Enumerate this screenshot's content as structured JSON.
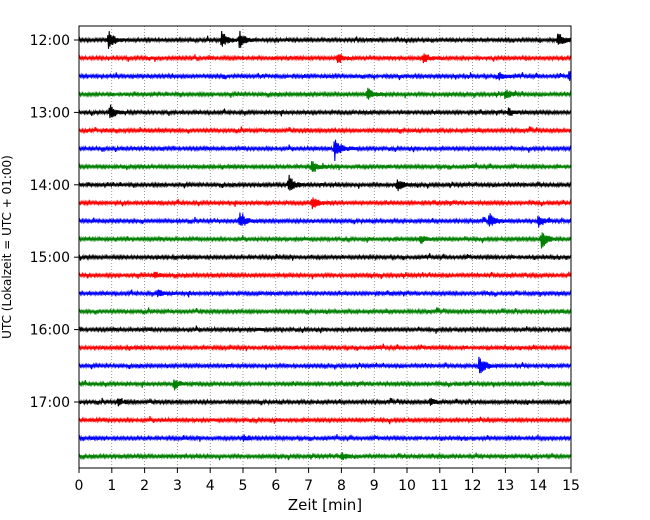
{
  "chart_data": {
    "type": "line",
    "title": "",
    "xlabel": "Zeit  [min]",
    "ylabel": "UTC (Lokalzeit = UTC + 01:00)",
    "xlim": [
      0,
      15
    ],
    "x_ticks": [
      "0",
      "1",
      "2",
      "3",
      "4",
      "5",
      "6",
      "7",
      "8",
      "9",
      "10",
      "11",
      "12",
      "13",
      "14",
      "15"
    ],
    "y_tick_labels": [
      "12:00",
      "13:00",
      "14:00",
      "15:00",
      "16:00",
      "17:00"
    ],
    "trace_interval_min": 15,
    "start_time": "12:00",
    "trace_count": 24,
    "colors": [
      "#000000",
      "#ff0000",
      "#0000ff",
      "#008000"
    ],
    "vertical_grid": "dotted",
    "events": [
      {
        "trace": 0,
        "t": 0.9,
        "amp": 1.0
      },
      {
        "trace": 0,
        "t": 4.35,
        "amp": 0.9
      },
      {
        "trace": 0,
        "t": 4.9,
        "amp": 1.0
      },
      {
        "trace": 0,
        "t": 14.6,
        "amp": 0.8
      },
      {
        "trace": 1,
        "t": 7.9,
        "amp": 0.6
      },
      {
        "trace": 1,
        "t": 10.5,
        "amp": 0.5
      },
      {
        "trace": 2,
        "t": 12.8,
        "amp": 0.5
      },
      {
        "trace": 2,
        "t": 14.95,
        "amp": 0.6
      },
      {
        "trace": 3,
        "t": 8.8,
        "amp": 0.6
      },
      {
        "trace": 3,
        "t": 13.0,
        "amp": 0.5
      },
      {
        "trace": 4,
        "t": 0.95,
        "amp": 0.8
      },
      {
        "trace": 4,
        "t": 13.1,
        "amp": 0.5
      },
      {
        "trace": 6,
        "t": 7.8,
        "amp": 1.2
      },
      {
        "trace": 7,
        "t": 7.1,
        "amp": 0.7
      },
      {
        "trace": 8,
        "t": 6.4,
        "amp": 1.0
      },
      {
        "trace": 8,
        "t": 9.7,
        "amp": 0.7
      },
      {
        "trace": 9,
        "t": 7.1,
        "amp": 0.7
      },
      {
        "trace": 10,
        "t": 4.9,
        "amp": 0.9
      },
      {
        "trace": 10,
        "t": 12.5,
        "amp": 0.8
      },
      {
        "trace": 10,
        "t": 14.0,
        "amp": 0.7
      },
      {
        "trace": 11,
        "t": 14.1,
        "amp": 1.1
      },
      {
        "trace": 11,
        "t": 10.4,
        "amp": 0.5
      },
      {
        "trace": 13,
        "t": 2.3,
        "amp": 0.4
      },
      {
        "trace": 14,
        "t": 2.4,
        "amp": 0.4
      },
      {
        "trace": 18,
        "t": 12.2,
        "amp": 1.1
      },
      {
        "trace": 19,
        "t": 2.9,
        "amp": 0.6
      },
      {
        "trace": 20,
        "t": 10.7,
        "amp": 0.4
      },
      {
        "trace": 20,
        "t": 1.2,
        "amp": 0.4
      },
      {
        "trace": 22,
        "t": 5.0,
        "amp": 0.3
      },
      {
        "trace": 23,
        "t": 8.0,
        "amp": 0.4
      }
    ]
  }
}
